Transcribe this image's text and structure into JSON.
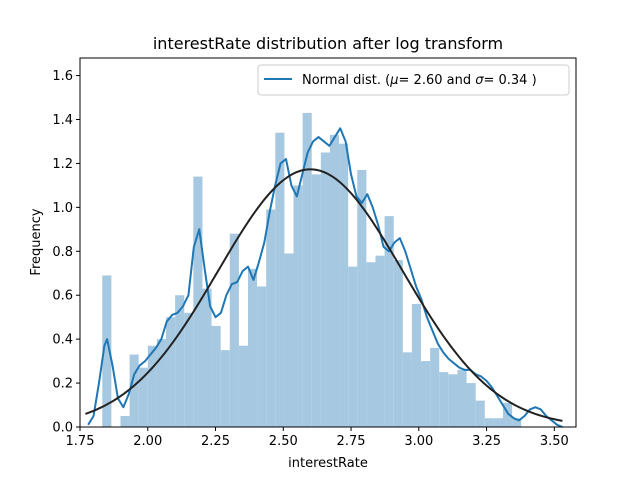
{
  "chart_data": {
    "type": "histogram",
    "title": "interestRate distribution after log transform",
    "xlabel": "interestRate",
    "ylabel": "Frequency",
    "xlim": [
      1.75,
      3.58
    ],
    "ylim": [
      0,
      1.68
    ],
    "xticks": [
      1.75,
      2.0,
      2.25,
      2.5,
      2.75,
      3.0,
      3.25,
      3.5
    ],
    "xtick_labels": [
      "1.75",
      "2.00",
      "2.25",
      "2.50",
      "2.75",
      "3.00",
      "3.25",
      "3.50"
    ],
    "yticks": [
      0.0,
      0.2,
      0.4,
      0.6,
      0.8,
      1.0,
      1.2,
      1.4,
      1.6
    ],
    "ytick_labels": [
      "0.0",
      "0.2",
      "0.4",
      "0.6",
      "0.8",
      "1.0",
      "1.2",
      "1.4",
      "1.6"
    ],
    "grid": false,
    "legend": {
      "position": "top-right",
      "entries": [
        "Normal dist. ($\\mu=$ 2.60 and $\\sigma=$ 0.34 )"
      ]
    },
    "legend_display": [
      {
        "text": "Normal dist. ("
      },
      {
        "text": "μ",
        "italic": true
      },
      {
        "text": "=  2.60 and "
      },
      {
        "text": "σ",
        "italic": true
      },
      {
        "text": "=  0.34 )"
      }
    ],
    "colors": {
      "bars": "#a6c8e0",
      "kde": "#1f77b4",
      "normal": "#222222"
    },
    "bins": {
      "start": 1.765,
      "width": 0.0336,
      "heights": [
        0.0,
        0.0,
        0.69,
        0.0,
        0.05,
        0.33,
        0.27,
        0.37,
        0.4,
        0.5,
        0.6,
        0.52,
        1.14,
        0.63,
        0.46,
        0.35,
        0.88,
        0.37,
        0.72,
        0.64,
        0.99,
        1.34,
        0.79,
        1.1,
        1.43,
        1.15,
        1.25,
        1.33,
        1.29,
        0.73,
        1.17,
        0.75,
        0.78,
        0.96,
        0.76,
        0.34,
        0.56,
        0.3,
        0.36,
        0.25,
        0.24,
        0.26,
        0.2,
        0.12,
        0.04,
        0.04,
        0.11,
        0.04
      ]
    },
    "series": [
      {
        "name": "KDE",
        "style": "line",
        "x": [
          1.78,
          1.8,
          1.82,
          1.84,
          1.85,
          1.87,
          1.89,
          1.91,
          1.93,
          1.95,
          1.97,
          1.99,
          2.01,
          2.03,
          2.05,
          2.07,
          2.09,
          2.11,
          2.13,
          2.15,
          2.17,
          2.19,
          2.21,
          2.23,
          2.25,
          2.27,
          2.29,
          2.31,
          2.33,
          2.35,
          2.37,
          2.39,
          2.41,
          2.43,
          2.45,
          2.47,
          2.49,
          2.51,
          2.53,
          2.55,
          2.57,
          2.59,
          2.61,
          2.63,
          2.65,
          2.67,
          2.69,
          2.71,
          2.73,
          2.75,
          2.77,
          2.79,
          2.81,
          2.83,
          2.85,
          2.87,
          2.89,
          2.91,
          2.93,
          2.95,
          2.97,
          2.99,
          3.01,
          3.03,
          3.05,
          3.07,
          3.09,
          3.11,
          3.13,
          3.15,
          3.17,
          3.19,
          3.21,
          3.23,
          3.25,
          3.27,
          3.29,
          3.31,
          3.33,
          3.35,
          3.37,
          3.39,
          3.41,
          3.43,
          3.45,
          3.47,
          3.49,
          3.51,
          3.53
        ],
        "y": [
          0.01,
          0.05,
          0.2,
          0.37,
          0.4,
          0.28,
          0.13,
          0.09,
          0.15,
          0.24,
          0.28,
          0.3,
          0.33,
          0.36,
          0.4,
          0.48,
          0.51,
          0.52,
          0.55,
          0.6,
          0.82,
          0.9,
          0.72,
          0.55,
          0.5,
          0.52,
          0.6,
          0.65,
          0.66,
          0.71,
          0.73,
          0.67,
          0.75,
          0.84,
          0.98,
          1.1,
          1.2,
          1.22,
          1.1,
          1.05,
          1.15,
          1.25,
          1.3,
          1.32,
          1.3,
          1.28,
          1.32,
          1.36,
          1.3,
          1.15,
          1.05,
          1.02,
          1.06,
          1.0,
          0.92,
          0.82,
          0.8,
          0.84,
          0.86,
          0.8,
          0.72,
          0.64,
          0.58,
          0.5,
          0.44,
          0.38,
          0.34,
          0.31,
          0.29,
          0.27,
          0.26,
          0.26,
          0.24,
          0.23,
          0.21,
          0.18,
          0.14,
          0.1,
          0.06,
          0.04,
          0.03,
          0.05,
          0.08,
          0.09,
          0.08,
          0.05,
          0.03,
          0.01,
          0.0
        ]
      },
      {
        "name": "Normal dist. ($\\mu=$ 2.60 and $\\sigma=$ 0.34 )",
        "style": "line",
        "mu": 2.6,
        "sigma": 0.34,
        "x_range": [
          1.77,
          3.53
        ]
      }
    ]
  }
}
